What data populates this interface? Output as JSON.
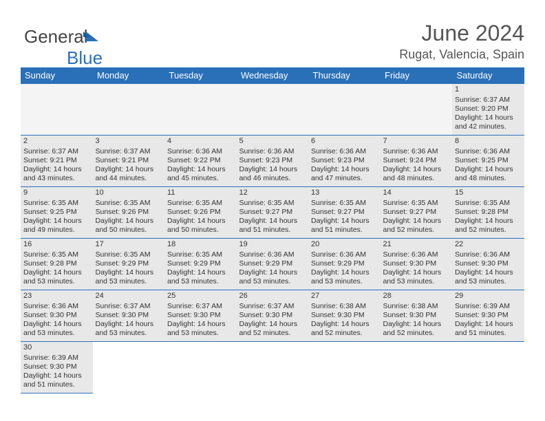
{
  "branding": {
    "name_part1": "General",
    "name_part2": "Blue"
  },
  "header": {
    "month_title": "June 2024",
    "location": "Rugat, Valencia, Spain"
  },
  "day_headers": [
    "Sunday",
    "Monday",
    "Tuesday",
    "Wednesday",
    "Thursday",
    "Friday",
    "Saturday"
  ],
  "colors": {
    "header_bg": "#2a70b8",
    "cell_bg": "#e8e8e8",
    "empty_bg": "#f4f4f4",
    "border": "#2a70b8"
  },
  "weeks": [
    [
      null,
      null,
      null,
      null,
      null,
      null,
      {
        "day": "1",
        "sunrise": "Sunrise: 6:37 AM",
        "sunset": "Sunset: 9:20 PM",
        "daylight1": "Daylight: 14 hours",
        "daylight2": "and 42 minutes."
      }
    ],
    [
      {
        "day": "2",
        "sunrise": "Sunrise: 6:37 AM",
        "sunset": "Sunset: 9:21 PM",
        "daylight1": "Daylight: 14 hours",
        "daylight2": "and 43 minutes."
      },
      {
        "day": "3",
        "sunrise": "Sunrise: 6:37 AM",
        "sunset": "Sunset: 9:21 PM",
        "daylight1": "Daylight: 14 hours",
        "daylight2": "and 44 minutes."
      },
      {
        "day": "4",
        "sunrise": "Sunrise: 6:36 AM",
        "sunset": "Sunset: 9:22 PM",
        "daylight1": "Daylight: 14 hours",
        "daylight2": "and 45 minutes."
      },
      {
        "day": "5",
        "sunrise": "Sunrise: 6:36 AM",
        "sunset": "Sunset: 9:23 PM",
        "daylight1": "Daylight: 14 hours",
        "daylight2": "and 46 minutes."
      },
      {
        "day": "6",
        "sunrise": "Sunrise: 6:36 AM",
        "sunset": "Sunset: 9:23 PM",
        "daylight1": "Daylight: 14 hours",
        "daylight2": "and 47 minutes."
      },
      {
        "day": "7",
        "sunrise": "Sunrise: 6:36 AM",
        "sunset": "Sunset: 9:24 PM",
        "daylight1": "Daylight: 14 hours",
        "daylight2": "and 48 minutes."
      },
      {
        "day": "8",
        "sunrise": "Sunrise: 6:36 AM",
        "sunset": "Sunset: 9:25 PM",
        "daylight1": "Daylight: 14 hours",
        "daylight2": "and 48 minutes."
      }
    ],
    [
      {
        "day": "9",
        "sunrise": "Sunrise: 6:35 AM",
        "sunset": "Sunset: 9:25 PM",
        "daylight1": "Daylight: 14 hours",
        "daylight2": "and 49 minutes."
      },
      {
        "day": "10",
        "sunrise": "Sunrise: 6:35 AM",
        "sunset": "Sunset: 9:26 PM",
        "daylight1": "Daylight: 14 hours",
        "daylight2": "and 50 minutes."
      },
      {
        "day": "11",
        "sunrise": "Sunrise: 6:35 AM",
        "sunset": "Sunset: 9:26 PM",
        "daylight1": "Daylight: 14 hours",
        "daylight2": "and 50 minutes."
      },
      {
        "day": "12",
        "sunrise": "Sunrise: 6:35 AM",
        "sunset": "Sunset: 9:27 PM",
        "daylight1": "Daylight: 14 hours",
        "daylight2": "and 51 minutes."
      },
      {
        "day": "13",
        "sunrise": "Sunrise: 6:35 AM",
        "sunset": "Sunset: 9:27 PM",
        "daylight1": "Daylight: 14 hours",
        "daylight2": "and 51 minutes."
      },
      {
        "day": "14",
        "sunrise": "Sunrise: 6:35 AM",
        "sunset": "Sunset: 9:27 PM",
        "daylight1": "Daylight: 14 hours",
        "daylight2": "and 52 minutes."
      },
      {
        "day": "15",
        "sunrise": "Sunrise: 6:35 AM",
        "sunset": "Sunset: 9:28 PM",
        "daylight1": "Daylight: 14 hours",
        "daylight2": "and 52 minutes."
      }
    ],
    [
      {
        "day": "16",
        "sunrise": "Sunrise: 6:35 AM",
        "sunset": "Sunset: 9:28 PM",
        "daylight1": "Daylight: 14 hours",
        "daylight2": "and 53 minutes."
      },
      {
        "day": "17",
        "sunrise": "Sunrise: 6:35 AM",
        "sunset": "Sunset: 9:29 PM",
        "daylight1": "Daylight: 14 hours",
        "daylight2": "and 53 minutes."
      },
      {
        "day": "18",
        "sunrise": "Sunrise: 6:35 AM",
        "sunset": "Sunset: 9:29 PM",
        "daylight1": "Daylight: 14 hours",
        "daylight2": "and 53 minutes."
      },
      {
        "day": "19",
        "sunrise": "Sunrise: 6:36 AM",
        "sunset": "Sunset: 9:29 PM",
        "daylight1": "Daylight: 14 hours",
        "daylight2": "and 53 minutes."
      },
      {
        "day": "20",
        "sunrise": "Sunrise: 6:36 AM",
        "sunset": "Sunset: 9:29 PM",
        "daylight1": "Daylight: 14 hours",
        "daylight2": "and 53 minutes."
      },
      {
        "day": "21",
        "sunrise": "Sunrise: 6:36 AM",
        "sunset": "Sunset: 9:30 PM",
        "daylight1": "Daylight: 14 hours",
        "daylight2": "and 53 minutes."
      },
      {
        "day": "22",
        "sunrise": "Sunrise: 6:36 AM",
        "sunset": "Sunset: 9:30 PM",
        "daylight1": "Daylight: 14 hours",
        "daylight2": "and 53 minutes."
      }
    ],
    [
      {
        "day": "23",
        "sunrise": "Sunrise: 6:36 AM",
        "sunset": "Sunset: 9:30 PM",
        "daylight1": "Daylight: 14 hours",
        "daylight2": "and 53 minutes."
      },
      {
        "day": "24",
        "sunrise": "Sunrise: 6:37 AM",
        "sunset": "Sunset: 9:30 PM",
        "daylight1": "Daylight: 14 hours",
        "daylight2": "and 53 minutes."
      },
      {
        "day": "25",
        "sunrise": "Sunrise: 6:37 AM",
        "sunset": "Sunset: 9:30 PM",
        "daylight1": "Daylight: 14 hours",
        "daylight2": "and 53 minutes."
      },
      {
        "day": "26",
        "sunrise": "Sunrise: 6:37 AM",
        "sunset": "Sunset: 9:30 PM",
        "daylight1": "Daylight: 14 hours",
        "daylight2": "and 52 minutes."
      },
      {
        "day": "27",
        "sunrise": "Sunrise: 6:38 AM",
        "sunset": "Sunset: 9:30 PM",
        "daylight1": "Daylight: 14 hours",
        "daylight2": "and 52 minutes."
      },
      {
        "day": "28",
        "sunrise": "Sunrise: 6:38 AM",
        "sunset": "Sunset: 9:30 PM",
        "daylight1": "Daylight: 14 hours",
        "daylight2": "and 52 minutes."
      },
      {
        "day": "29",
        "sunrise": "Sunrise: 6:39 AM",
        "sunset": "Sunset: 9:30 PM",
        "daylight1": "Daylight: 14 hours",
        "daylight2": "and 51 minutes."
      }
    ],
    [
      {
        "day": "30",
        "sunrise": "Sunrise: 6:39 AM",
        "sunset": "Sunset: 9:30 PM",
        "daylight1": "Daylight: 14 hours",
        "daylight2": "and 51 minutes."
      },
      null,
      null,
      null,
      null,
      null,
      null
    ]
  ]
}
